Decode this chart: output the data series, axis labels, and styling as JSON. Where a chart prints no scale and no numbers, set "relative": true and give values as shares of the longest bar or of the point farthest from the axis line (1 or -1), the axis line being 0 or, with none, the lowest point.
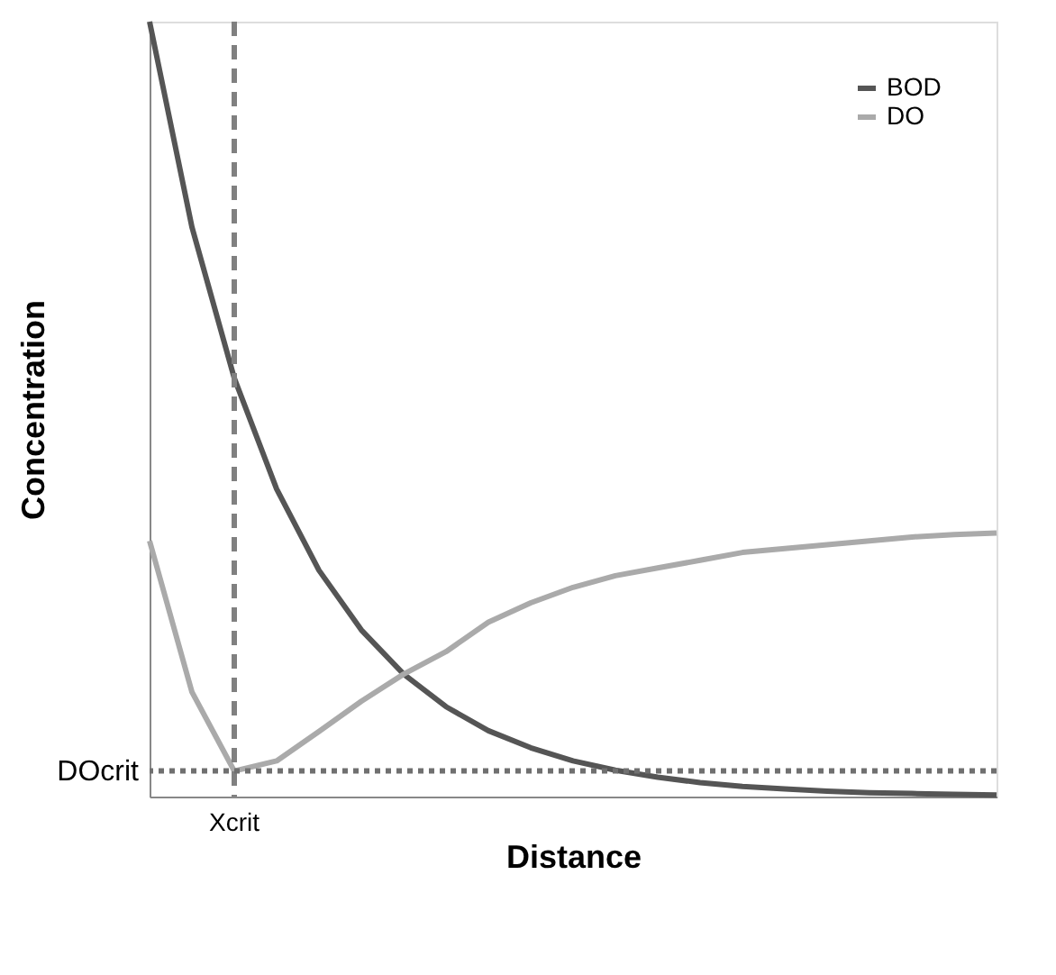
{
  "chart_data": {
    "type": "line",
    "relative": true,
    "xlabel": "Distance",
    "ylabel": "Concentration",
    "legend": "top right",
    "categories": [
      null,
      null,
      null,
      null,
      null,
      null,
      null,
      null,
      null,
      null,
      null,
      null,
      null,
      null,
      null,
      null,
      null,
      null,
      null,
      null,
      null
    ],
    "series": [
      {
        "name": "BOD",
        "color": "#555555",
        "values": [
          1,
          0.735,
          0.54,
          0.397,
          0.292,
          0.215,
          0.158,
          0.116,
          0.085,
          0.063,
          0.046,
          0.034,
          0.025,
          0.018,
          0.013,
          0.01,
          0.007,
          0.005,
          0.004,
          0.003,
          0.002
        ]
      },
      {
        "name": "DO",
        "color": "#aaaaaa",
        "values": [
          0.33,
          0.135,
          0.033,
          0.046,
          0.084,
          0.123,
          0.158,
          0.187,
          0.225,
          0.25,
          0.27,
          0.285,
          0.295,
          0.305,
          0.315,
          0.32,
          0.325,
          0.33,
          0.335,
          0.338,
          0.34
        ]
      }
    ],
    "annotations": [
      "Xcrit"
    ],
    "ref_lines": [
      {
        "axis": "y",
        "value": 0.033,
        "label": "DOcrit",
        "color": "#707070",
        "line_style": "dotted"
      }
    ]
  }
}
